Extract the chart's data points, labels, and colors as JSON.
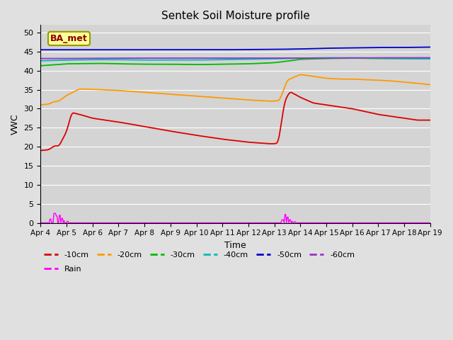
{
  "title": "Sentek Soil Moisture profile",
  "xlabel": "Time",
  "ylabel": "VWC",
  "legend_label": "BA_met",
  "ylim": [
    0,
    52
  ],
  "yticks": [
    0,
    5,
    10,
    15,
    20,
    25,
    30,
    35,
    40,
    45,
    50
  ],
  "bg_color": "#e0e0e0",
  "plot_bg_color": "#d4d4d4",
  "line_colors": {
    "-10cm": "#dd0000",
    "-20cm": "#ff9900",
    "-30cm": "#00bb00",
    "-40cm": "#00bbbb",
    "-50cm": "#0000cc",
    "-60cm": "#9933cc",
    "Rain": "#ff00ff"
  },
  "n_points": 500,
  "x_start": 4.0,
  "x_end": 19.0,
  "xtick_positions": [
    4,
    5,
    6,
    7,
    8,
    9,
    10,
    11,
    12,
    13,
    14,
    15,
    16,
    17,
    18,
    19
  ],
  "xtick_labels": [
    "Apr 4",
    "Apr 5",
    "Apr 6",
    "Apr 7",
    "Apr 8",
    "Apr 9",
    "Apr 10",
    "Apr 11",
    "Apr 12",
    "Apr 13",
    "Apr 14",
    "Apr 15",
    "Apr 16",
    "Apr 17",
    "Apr 18",
    "Apr 19"
  ]
}
